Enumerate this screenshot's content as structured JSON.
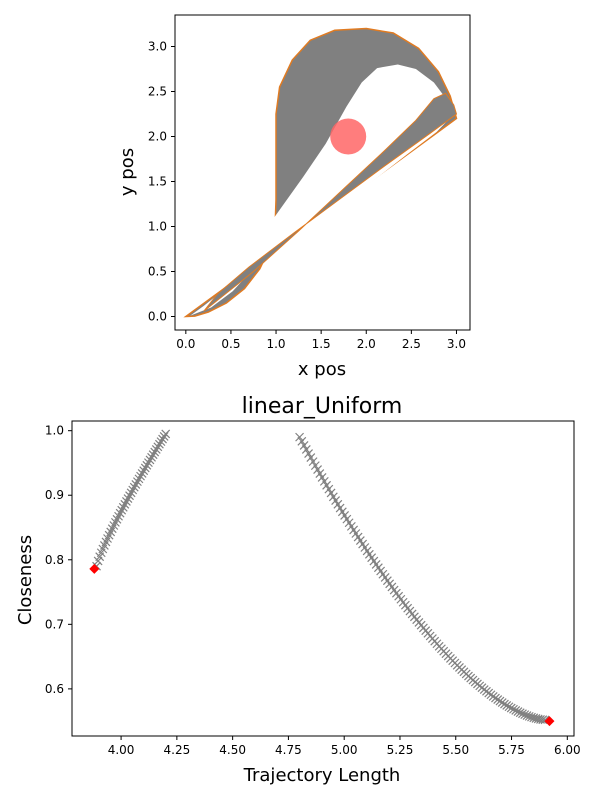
{
  "chart_data": [
    {
      "type": "area",
      "title": "",
      "xlabel": "x pos",
      "ylabel": "y pos",
      "xlim": [
        -0.12,
        3.15
      ],
      "ylim": [
        -0.15,
        3.35
      ],
      "xticks": [
        "0.0",
        "0.5",
        "1.0",
        "1.5",
        "2.0",
        "2.5",
        "3.0"
      ],
      "yticks": [
        "0.0",
        "0.5",
        "1.0",
        "1.5",
        "2.0",
        "2.5",
        "3.0"
      ],
      "obstacle": {
        "center": [
          1.8,
          2.0
        ],
        "radius": 0.2,
        "color": "#ff6666"
      },
      "fill_color": "#808080",
      "edge_color": "#e07b22",
      "bounding_path": [
        [
          0,
          0
        ],
        [
          0.1,
          0.005
        ],
        [
          0.25,
          0.05
        ],
        [
          0.45,
          0.15
        ],
        [
          0.65,
          0.31
        ],
        [
          0.82,
          0.53
        ],
        [
          0.93,
          0.76
        ],
        [
          0.99,
          1.0
        ],
        [
          1.0,
          1.3
        ],
        [
          1.0,
          2.25
        ],
        [
          1.04,
          2.55
        ],
        [
          1.18,
          2.85
        ],
        [
          1.38,
          3.07
        ],
        [
          1.65,
          3.18
        ],
        [
          2.0,
          3.2
        ],
        [
          2.3,
          3.15
        ],
        [
          2.58,
          2.98
        ],
        [
          2.8,
          2.72
        ],
        [
          2.93,
          2.45
        ],
        [
          3.0,
          2.2
        ],
        [
          0,
          0
        ]
      ],
      "inner_path_a": [
        [
          0.05,
          0.01
        ],
        [
          0.28,
          0.1
        ],
        [
          0.52,
          0.28
        ],
        [
          0.72,
          0.5
        ],
        [
          0.88,
          0.8
        ],
        [
          0.98,
          1.1
        ],
        [
          1.3,
          1.55
        ],
        [
          1.55,
          1.92
        ],
        [
          1.78,
          2.33
        ],
        [
          1.95,
          2.6
        ],
        [
          2.12,
          2.76
        ],
        [
          2.35,
          2.8
        ],
        [
          2.55,
          2.75
        ],
        [
          2.75,
          2.6
        ],
        [
          2.9,
          2.4
        ],
        [
          2.97,
          2.25
        ],
        [
          2.78,
          2.05
        ],
        [
          2.45,
          1.8
        ],
        [
          2.0,
          1.45
        ],
        [
          1.6,
          1.15
        ],
        [
          1.0,
          0.72
        ],
        [
          0.55,
          0.4
        ],
        [
          0.2,
          0.12
        ],
        [
          0.05,
          0.01
        ]
      ],
      "inner_path_b": [
        [
          0.2,
          0.06
        ],
        [
          0.75,
          0.5
        ],
        [
          1.25,
          0.95
        ],
        [
          1.75,
          1.42
        ],
        [
          2.2,
          1.84
        ],
        [
          2.55,
          2.18
        ],
        [
          2.75,
          2.42
        ],
        [
          2.88,
          2.48
        ],
        [
          2.97,
          2.35
        ],
        [
          3.0,
          2.25
        ],
        [
          2.7,
          2.03
        ],
        [
          2.2,
          1.67
        ],
        [
          1.7,
          1.3
        ],
        [
          1.2,
          0.93
        ],
        [
          0.7,
          0.55
        ],
        [
          0.35,
          0.25
        ],
        [
          0.2,
          0.06
        ]
      ]
    },
    {
      "type": "scatter",
      "title": "linear_Uniform",
      "xlabel": "Trajectory Length",
      "ylabel": "Closeness",
      "xlim": [
        3.78,
        6.03
      ],
      "ylim": [
        0.527,
        1.015
      ],
      "xticks": [
        "4.00",
        "4.25",
        "4.50",
        "4.75",
        "5.00",
        "5.25",
        "5.50",
        "5.75",
        "6.00"
      ],
      "yticks": [
        "0.6",
        "0.7",
        "0.8",
        "0.9",
        "1.0"
      ],
      "series": [
        {
          "marker": "x",
          "color": "#808080",
          "x_start": 3.89,
          "x_end": 4.2,
          "y_start": 0.79,
          "y_end": 0.995,
          "count": 45,
          "curve": "concave"
        },
        {
          "marker": "x",
          "color": "#808080",
          "x_start": 4.8,
          "x_end": 5.9,
          "y_start": 0.99,
          "y_end": 0.552,
          "count": 110,
          "curve": "convex"
        }
      ],
      "highlights": [
        {
          "x": 3.88,
          "y": 0.786,
          "color": "#ff0000"
        },
        {
          "x": 5.92,
          "y": 0.55,
          "color": "#ff0000"
        }
      ]
    }
  ]
}
